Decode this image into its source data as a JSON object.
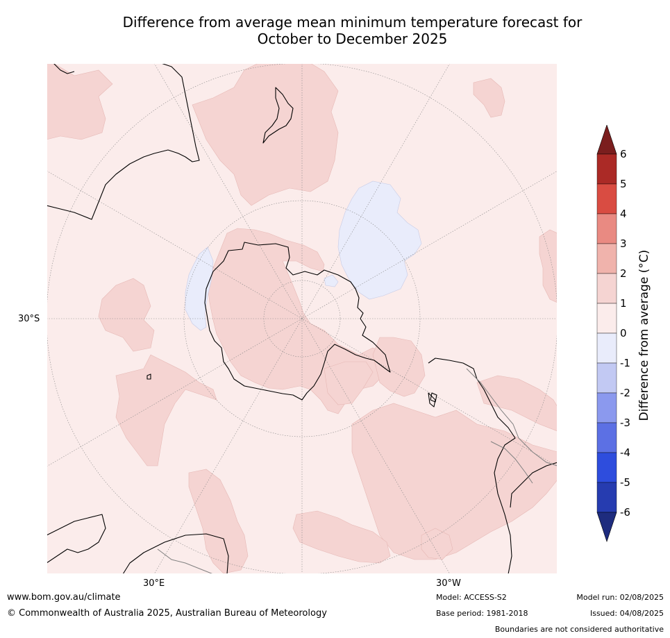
{
  "title": {
    "line1": "Difference from average mean minimum temperature forecast for",
    "line2": "October to December 2025"
  },
  "map": {
    "projection": "south-polar-stereographic",
    "lat_label": "30°S",
    "lon_labels": [
      "30°E",
      "30°W"
    ],
    "colors": {
      "background_0_1": "#fbeceb",
      "band_1_2": "#f5d4d2",
      "band_minus1_0": "#e9ecfb",
      "coastline": "#000000",
      "boundary": "#808080",
      "graticule": "#888888"
    }
  },
  "legend": {
    "label": "Difference from average (°C)",
    "ticks": [
      "6",
      "5",
      "4",
      "3",
      "2",
      "1",
      "0",
      "-1",
      "-2",
      "-3",
      "-4",
      "-5",
      "-6"
    ],
    "bands": [
      {
        "range": "above 6",
        "color": "#7b1e1e"
      },
      {
        "range": "5 to 6",
        "color": "#ab2a26"
      },
      {
        "range": "4 to 5",
        "color": "#d94c42"
      },
      {
        "range": "3 to 4",
        "color": "#e98a82"
      },
      {
        "range": "2 to 3",
        "color": "#f0b3ac"
      },
      {
        "range": "1 to 2",
        "color": "#f5d4d2"
      },
      {
        "range": "0 to 1",
        "color": "#fbeceb"
      },
      {
        "range": "-1 to 0",
        "color": "#e9ecfb"
      },
      {
        "range": "-2 to -1",
        "color": "#c2c9f3"
      },
      {
        "range": "-3 to -2",
        "color": "#8b99ee"
      },
      {
        "range": "-4 to -3",
        "color": "#5c70e4"
      },
      {
        "range": "-5 to -4",
        "color": "#2e4ddd"
      },
      {
        "range": "-6 to -5",
        "color": "#263cb0"
      },
      {
        "range": "below -6",
        "color": "#1e2c7e"
      }
    ]
  },
  "footer": {
    "website": "www.bom.gov.au/climate",
    "copyright": "© Commonwealth of Australia 2025, Australian Bureau of Meteorology",
    "model": "Model: ACCESS-S2",
    "base_period": "Base period: 1981-2018",
    "model_run": "Model run: 02/08/2025",
    "issued": "Issued: 04/08/2025",
    "disclaimer": "Boundaries are not considered authoritative"
  }
}
